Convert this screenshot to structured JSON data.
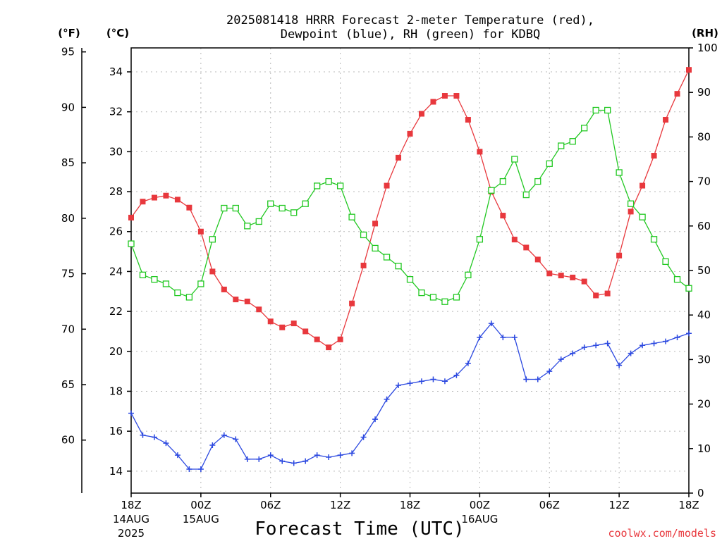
{
  "chart_data": {
    "type": "line",
    "title_line1": "2025081418 HRRR Forecast 2-meter Temperature (red),",
    "title_line2": "Dewpoint (blue), RH (green) for KDBQ",
    "xlabel": "Forecast Time (UTC)",
    "credit": "coolwx.com/models",
    "unit_f": "(°F)",
    "unit_c": "(°C)",
    "unit_rh": "(RH)",
    "x_forecast_hour_range": [
      0,
      48
    ],
    "y_celsius_range": [
      12.9,
      35.2
    ],
    "y_rh_range": [
      0,
      100
    ],
    "grid": true,
    "fahrenheit_ticks": [
      "95",
      "90",
      "85",
      "80",
      "75",
      "70",
      "65",
      "60"
    ],
    "fahrenheit_values": [
      95,
      90,
      85,
      80,
      75,
      70,
      65,
      60
    ],
    "celsius_ticks": [
      "34",
      "32",
      "30",
      "28",
      "26",
      "24",
      "22",
      "20",
      "18",
      "16",
      "14"
    ],
    "celsius_values": [
      34,
      32,
      30,
      28,
      26,
      24,
      22,
      20,
      18,
      16,
      14
    ],
    "rh_ticks": [
      "100",
      "90",
      "80",
      "70",
      "60",
      "50",
      "40",
      "30",
      "20",
      "10",
      "0"
    ],
    "rh_values": [
      100,
      90,
      80,
      70,
      60,
      50,
      40,
      30,
      20,
      10,
      0
    ],
    "x_ticks": [
      {
        "hour": 0,
        "label": "18Z",
        "sub1": "14AUG",
        "sub2": "2025"
      },
      {
        "hour": 6,
        "label": "00Z",
        "sub1": "15AUG",
        "sub2": ""
      },
      {
        "hour": 12,
        "label": "06Z",
        "sub1": "",
        "sub2": ""
      },
      {
        "hour": 18,
        "label": "12Z",
        "sub1": "",
        "sub2": ""
      },
      {
        "hour": 24,
        "label": "18Z",
        "sub1": "",
        "sub2": ""
      },
      {
        "hour": 30,
        "label": "00Z",
        "sub1": "16AUG",
        "sub2": ""
      },
      {
        "hour": 36,
        "label": "06Z",
        "sub1": "",
        "sub2": ""
      },
      {
        "hour": 42,
        "label": "12Z",
        "sub1": "",
        "sub2": ""
      },
      {
        "hour": 48,
        "label": "18Z",
        "sub1": "",
        "sub2": ""
      }
    ],
    "series": [
      {
        "axis": "celsius",
        "color": "#e8383d",
        "marker": "filled-square",
        "values": [
          26.7,
          27.5,
          27.7,
          27.8,
          27.6,
          27.2,
          26.0,
          24.0,
          23.1,
          22.6,
          22.5,
          22.1,
          21.5,
          21.2,
          21.4,
          21.0,
          20.6,
          20.2,
          20.6,
          22.4,
          24.3,
          26.4,
          28.3,
          29.7,
          30.9,
          31.9,
          32.5,
          32.8,
          32.8,
          31.6,
          30.0,
          28.0,
          26.8,
          25.6,
          25.2,
          24.6,
          23.9,
          23.8,
          23.7,
          23.5,
          22.8,
          22.9,
          24.8,
          27.0,
          28.3,
          29.8,
          31.6,
          32.9,
          34.1
        ]
      },
      {
        "axis": "celsius",
        "color": "#2b48e0",
        "marker": "plus",
        "values": [
          16.9,
          15.8,
          15.7,
          15.4,
          14.8,
          14.1,
          14.1,
          15.3,
          15.8,
          15.6,
          14.6,
          14.6,
          14.8,
          14.5,
          14.4,
          14.5,
          14.8,
          14.7,
          14.8,
          14.9,
          15.7,
          16.6,
          17.6,
          18.3,
          18.4,
          18.5,
          18.6,
          18.5,
          18.8,
          19.4,
          20.7,
          21.4,
          20.7,
          20.7,
          18.6,
          18.6,
          19.0,
          19.6,
          19.9,
          20.2,
          20.3,
          20.4,
          19.3,
          19.9,
          20.3,
          20.4,
          20.5,
          20.7,
          20.9
        ]
      },
      {
        "axis": "rh",
        "color": "#22c822",
        "marker": "open-square",
        "values": [
          56,
          49,
          48,
          47,
          45,
          44,
          47,
          57,
          64,
          64,
          60,
          61,
          65,
          64,
          63,
          65,
          69,
          70,
          69,
          62,
          58,
          55,
          53,
          51,
          48,
          45,
          44,
          43,
          44,
          49,
          57,
          68,
          70,
          75,
          67,
          70,
          74,
          78,
          79,
          82,
          86,
          86,
          72,
          65,
          62,
          57,
          52,
          48,
          46
        ]
      }
    ]
  }
}
